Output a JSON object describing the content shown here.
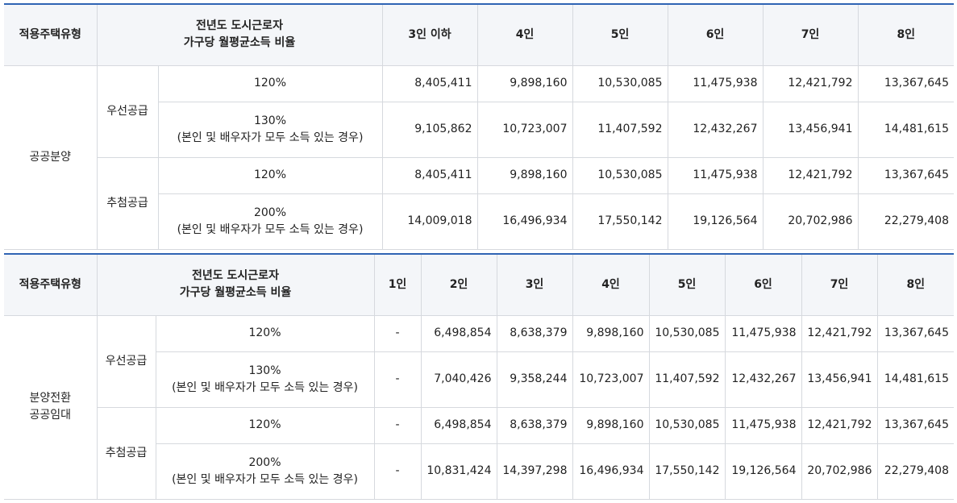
{
  "table1": {
    "header": {
      "housing_type": "적용주택유형",
      "income_ratio_line1": "전년도 도시근로자",
      "income_ratio_line2": "가구당 월평균소득 비율",
      "columns": [
        "3인 이하",
        "4인",
        "5인",
        "6인",
        "7인",
        "8인"
      ]
    },
    "housing_type": "공공분양",
    "groups": [
      {
        "name": "우선공급",
        "rows": [
          {
            "ratio": "120%",
            "ratio_note": "",
            "values": [
              "8,405,411",
              "9,898,160",
              "10,530,085",
              "11,475,938",
              "12,421,792",
              "13,367,645"
            ]
          },
          {
            "ratio": "130%",
            "ratio_note": "(본인 및 배우자가 모두 소득 있는 경우)",
            "values": [
              "9,105,862",
              "10,723,007",
              "11,407,592",
              "12,432,267",
              "13,456,941",
              "14,481,615"
            ]
          }
        ]
      },
      {
        "name": "추첨공급",
        "rows": [
          {
            "ratio": "120%",
            "ratio_note": "",
            "values": [
              "8,405,411",
              "9,898,160",
              "10,530,085",
              "11,475,938",
              "12,421,792",
              "13,367,645"
            ]
          },
          {
            "ratio": "200%",
            "ratio_note": "(본인 및 배우자가 모두 소득 있는 경우)",
            "values": [
              "14,009,018",
              "16,496,934",
              "17,550,142",
              "19,126,564",
              "20,702,986",
              "22,279,408"
            ]
          }
        ]
      }
    ]
  },
  "table2": {
    "header": {
      "housing_type": "적용주택유형",
      "income_ratio_line1": "전년도 도시근로자",
      "income_ratio_line2": "가구당 월평균소득 비율",
      "columns": [
        "1인",
        "2인",
        "3인",
        "4인",
        "5인",
        "6인",
        "7인",
        "8인"
      ]
    },
    "housing_type_line1": "분양전환",
    "housing_type_line2": "공공임대",
    "groups": [
      {
        "name": "우선공급",
        "rows": [
          {
            "ratio": "120%",
            "ratio_note": "",
            "values": [
              "-",
              "6,498,854",
              "8,638,379",
              "9,898,160",
              "10,530,085",
              "11,475,938",
              "12,421,792",
              "13,367,645"
            ]
          },
          {
            "ratio": "130%",
            "ratio_note": "(본인 및 배우자가 모두 소득 있는 경우)",
            "values": [
              "-",
              "7,040,426",
              "9,358,244",
              "10,723,007",
              "11,407,592",
              "12,432,267",
              "13,456,941",
              "14,481,615"
            ]
          }
        ]
      },
      {
        "name": "추첨공급",
        "rows": [
          {
            "ratio": "120%",
            "ratio_note": "",
            "values": [
              "-",
              "6,498,854",
              "8,638,379",
              "9,898,160",
              "10,530,085",
              "11,475,938",
              "12,421,792",
              "13,367,645"
            ]
          },
          {
            "ratio": "200%",
            "ratio_note": "(본인 및 배우자가 모두 소득 있는 경우)",
            "values": [
              "-",
              "10,831,424",
              "14,397,298",
              "16,496,934",
              "17,550,142",
              "19,126,564",
              "20,702,986",
              "22,279,408"
            ]
          }
        ]
      }
    ]
  },
  "colors": {
    "accent_border": "#2f64b4",
    "header_bg": "#f4f6f9",
    "grid_line": "#d6d9de"
  }
}
